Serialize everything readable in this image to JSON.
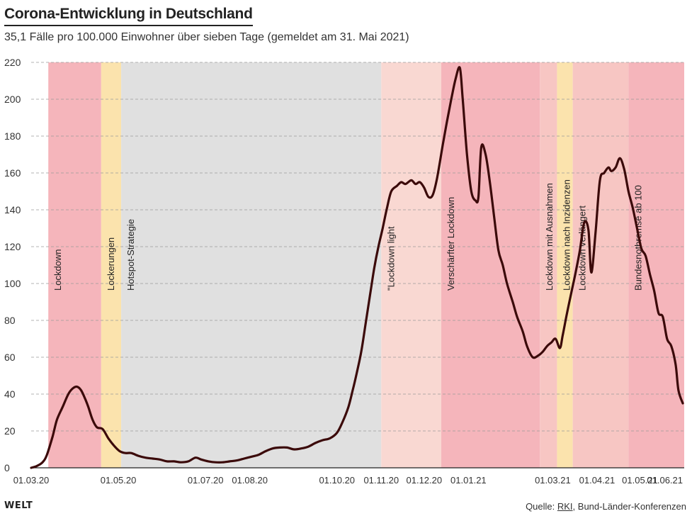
{
  "header": {
    "title": "Corona-Entwicklung in Deutschland",
    "subtitle": "35,1 Fälle pro 100.000 Einwohner über sieben Tage (gemeldet am 31. Mai 2021)"
  },
  "footer": {
    "logo": "WELT",
    "source_prefix": "Quelle: ",
    "source_link": "RKI",
    "source_suffix": ", Bund-Länder-Konferenzen"
  },
  "chart_data": {
    "type": "line",
    "ylim": [
      0,
      220
    ],
    "yticks": [
      0,
      20,
      40,
      60,
      80,
      100,
      120,
      140,
      160,
      180,
      200,
      220
    ],
    "xlim": [
      "2020-03-01",
      "2021-06-01"
    ],
    "xticks": [
      {
        "date": "2020-03-01",
        "label": "01.03.20"
      },
      {
        "date": "2020-05-01",
        "label": "01.05.20"
      },
      {
        "date": "2020-07-01",
        "label": "01.07.20"
      },
      {
        "date": "2020-08-01",
        "label": "01.08.20"
      },
      {
        "date": "2020-10-01",
        "label": "01.10.20"
      },
      {
        "date": "2020-11-01",
        "label": "01.11.20"
      },
      {
        "date": "2020-12-01",
        "label": "01.12.20"
      },
      {
        "date": "2021-01-01",
        "label": "01.01.21"
      },
      {
        "date": "2021-03-01",
        "label": "01.03.21"
      },
      {
        "date": "2021-04-01",
        "label": "01.04.21"
      },
      {
        "date": "2021-05-01",
        "label": "01.05.21"
      },
      {
        "date": "2021-06-01",
        "label": "01.06.21"
      }
    ],
    "grid": true,
    "line_color": "#3b0a0a",
    "phases": [
      {
        "start": "2020-03-13",
        "end": "2020-04-19",
        "label": "Lockdown",
        "color": "#f5b5bb"
      },
      {
        "start": "2020-04-19",
        "end": "2020-05-03",
        "label": "Lockerungen",
        "color": "#fbe3ad"
      },
      {
        "start": "2020-05-03",
        "end": "2020-11-01",
        "label": "Hotspot-Strategie",
        "color": "#e0e0e0"
      },
      {
        "start": "2020-11-01",
        "end": "2020-12-13",
        "label": "\"Lockdown light",
        "color": "#f9d8d2"
      },
      {
        "start": "2020-12-13",
        "end": "2021-02-20",
        "label": "Verschärfter Lockdown",
        "color": "#f5b5bb"
      },
      {
        "start": "2021-02-20",
        "end": "2021-03-04",
        "label": "Lockdown mit Ausnahmen",
        "color": "#f7c6c3"
      },
      {
        "start": "2021-03-04",
        "end": "2021-03-15",
        "label": "Lockdown nach Inzidenzen",
        "color": "#fbe3ad"
      },
      {
        "start": "2021-03-15",
        "end": "2021-04-23",
        "label": "Lockdown verlängert",
        "color": "#f7c6c3"
      },
      {
        "start": "2021-04-23",
        "end": "2021-06-01",
        "label": "Bundesnotbremse ab 100",
        "color": "#f5b5bb"
      }
    ],
    "series": [
      {
        "points": [
          [
            "2020-03-01",
            0
          ],
          [
            "2020-03-05",
            1
          ],
          [
            "2020-03-09",
            3
          ],
          [
            "2020-03-12",
            7
          ],
          [
            "2020-03-16",
            17
          ],
          [
            "2020-03-19",
            26
          ],
          [
            "2020-03-23",
            33
          ],
          [
            "2020-03-27",
            40
          ],
          [
            "2020-03-30",
            43
          ],
          [
            "2020-04-02",
            44
          ],
          [
            "2020-04-05",
            42
          ],
          [
            "2020-04-08",
            37
          ],
          [
            "2020-04-10",
            33
          ],
          [
            "2020-04-13",
            26
          ],
          [
            "2020-04-16",
            22
          ],
          [
            "2020-04-20",
            21
          ],
          [
            "2020-04-24",
            16
          ],
          [
            "2020-04-28",
            12
          ],
          [
            "2020-05-02",
            9
          ],
          [
            "2020-05-06",
            8
          ],
          [
            "2020-05-10",
            8
          ],
          [
            "2020-05-15",
            6.5
          ],
          [
            "2020-05-20",
            5.5
          ],
          [
            "2020-05-25",
            5
          ],
          [
            "2020-05-30",
            4.5
          ],
          [
            "2020-06-04",
            3.5
          ],
          [
            "2020-06-09",
            3.5
          ],
          [
            "2020-06-14",
            3
          ],
          [
            "2020-06-19",
            3.5
          ],
          [
            "2020-06-24",
            5.5
          ],
          [
            "2020-06-28",
            4.5
          ],
          [
            "2020-07-03",
            3.5
          ],
          [
            "2020-07-08",
            3
          ],
          [
            "2020-07-13",
            3
          ],
          [
            "2020-07-18",
            3.5
          ],
          [
            "2020-07-23",
            4
          ],
          [
            "2020-07-28",
            5
          ],
          [
            "2020-08-02",
            6
          ],
          [
            "2020-08-07",
            7
          ],
          [
            "2020-08-12",
            9
          ],
          [
            "2020-08-17",
            10.5
          ],
          [
            "2020-08-22",
            11
          ],
          [
            "2020-08-27",
            11
          ],
          [
            "2020-09-01",
            10
          ],
          [
            "2020-09-06",
            10.5
          ],
          [
            "2020-09-11",
            11.5
          ],
          [
            "2020-09-16",
            13.5
          ],
          [
            "2020-09-21",
            15
          ],
          [
            "2020-09-26",
            16
          ],
          [
            "2020-10-01",
            19
          ],
          [
            "2020-10-05",
            25
          ],
          [
            "2020-10-09",
            33
          ],
          [
            "2020-10-12",
            42
          ],
          [
            "2020-10-15",
            52
          ],
          [
            "2020-10-18",
            63
          ],
          [
            "2020-10-21",
            78
          ],
          [
            "2020-10-24",
            93
          ],
          [
            "2020-10-27",
            108
          ],
          [
            "2020-10-30",
            120
          ],
          [
            "2020-11-02",
            130
          ],
          [
            "2020-11-05",
            141
          ],
          [
            "2020-11-08",
            150
          ],
          [
            "2020-11-12",
            153
          ],
          [
            "2020-11-15",
            155
          ],
          [
            "2020-11-18",
            154
          ],
          [
            "2020-11-22",
            156
          ],
          [
            "2020-11-25",
            154
          ],
          [
            "2020-11-28",
            155
          ],
          [
            "2020-12-01",
            152
          ],
          [
            "2020-12-04",
            147
          ],
          [
            "2020-12-07",
            148
          ],
          [
            "2020-12-10",
            157
          ],
          [
            "2020-12-14",
            175
          ],
          [
            "2020-12-17",
            188
          ],
          [
            "2020-12-20",
            200
          ],
          [
            "2020-12-23",
            211
          ],
          [
            "2020-12-26",
            217
          ],
          [
            "2020-12-28",
            200
          ],
          [
            "2020-12-31",
            170
          ],
          [
            "2021-01-03",
            150
          ],
          [
            "2021-01-06",
            145
          ],
          [
            "2021-01-08",
            147
          ],
          [
            "2021-01-10",
            174
          ],
          [
            "2021-01-13",
            170
          ],
          [
            "2021-01-16",
            155
          ],
          [
            "2021-01-19",
            136
          ],
          [
            "2021-01-22",
            118
          ],
          [
            "2021-01-25",
            110
          ],
          [
            "2021-01-28",
            100
          ],
          [
            "2021-02-01",
            90
          ],
          [
            "2021-02-04",
            82
          ],
          [
            "2021-02-08",
            74
          ],
          [
            "2021-02-11",
            66
          ],
          [
            "2021-02-15",
            60
          ],
          [
            "2021-02-19",
            61
          ],
          [
            "2021-02-22",
            63
          ],
          [
            "2021-02-25",
            66
          ],
          [
            "2021-02-28",
            68
          ],
          [
            "2021-03-03",
            70
          ],
          [
            "2021-03-06",
            65
          ],
          [
            "2021-03-08",
            72
          ],
          [
            "2021-03-11",
            84
          ],
          [
            "2021-03-14",
            95
          ],
          [
            "2021-03-17",
            106
          ],
          [
            "2021-03-20",
            118
          ],
          [
            "2021-03-23",
            133
          ],
          [
            "2021-03-26",
            129
          ],
          [
            "2021-03-28",
            106
          ],
          [
            "2021-03-31",
            128
          ],
          [
            "2021-04-03",
            156
          ],
          [
            "2021-04-06",
            160
          ],
          [
            "2021-04-09",
            163
          ],
          [
            "2021-04-11",
            161
          ],
          [
            "2021-04-14",
            163
          ],
          [
            "2021-04-17",
            168
          ],
          [
            "2021-04-20",
            162
          ],
          [
            "2021-04-23",
            150
          ],
          [
            "2021-04-26",
            141
          ],
          [
            "2021-04-29",
            130
          ],
          [
            "2021-05-02",
            119
          ],
          [
            "2021-05-05",
            115
          ],
          [
            "2021-05-08",
            105
          ],
          [
            "2021-05-11",
            96
          ],
          [
            "2021-05-14",
            84
          ],
          [
            "2021-05-17",
            82
          ],
          [
            "2021-05-20",
            70
          ],
          [
            "2021-05-23",
            66
          ],
          [
            "2021-05-26",
            56
          ],
          [
            "2021-05-28",
            42
          ],
          [
            "2021-05-31",
            35
          ]
        ]
      }
    ]
  }
}
